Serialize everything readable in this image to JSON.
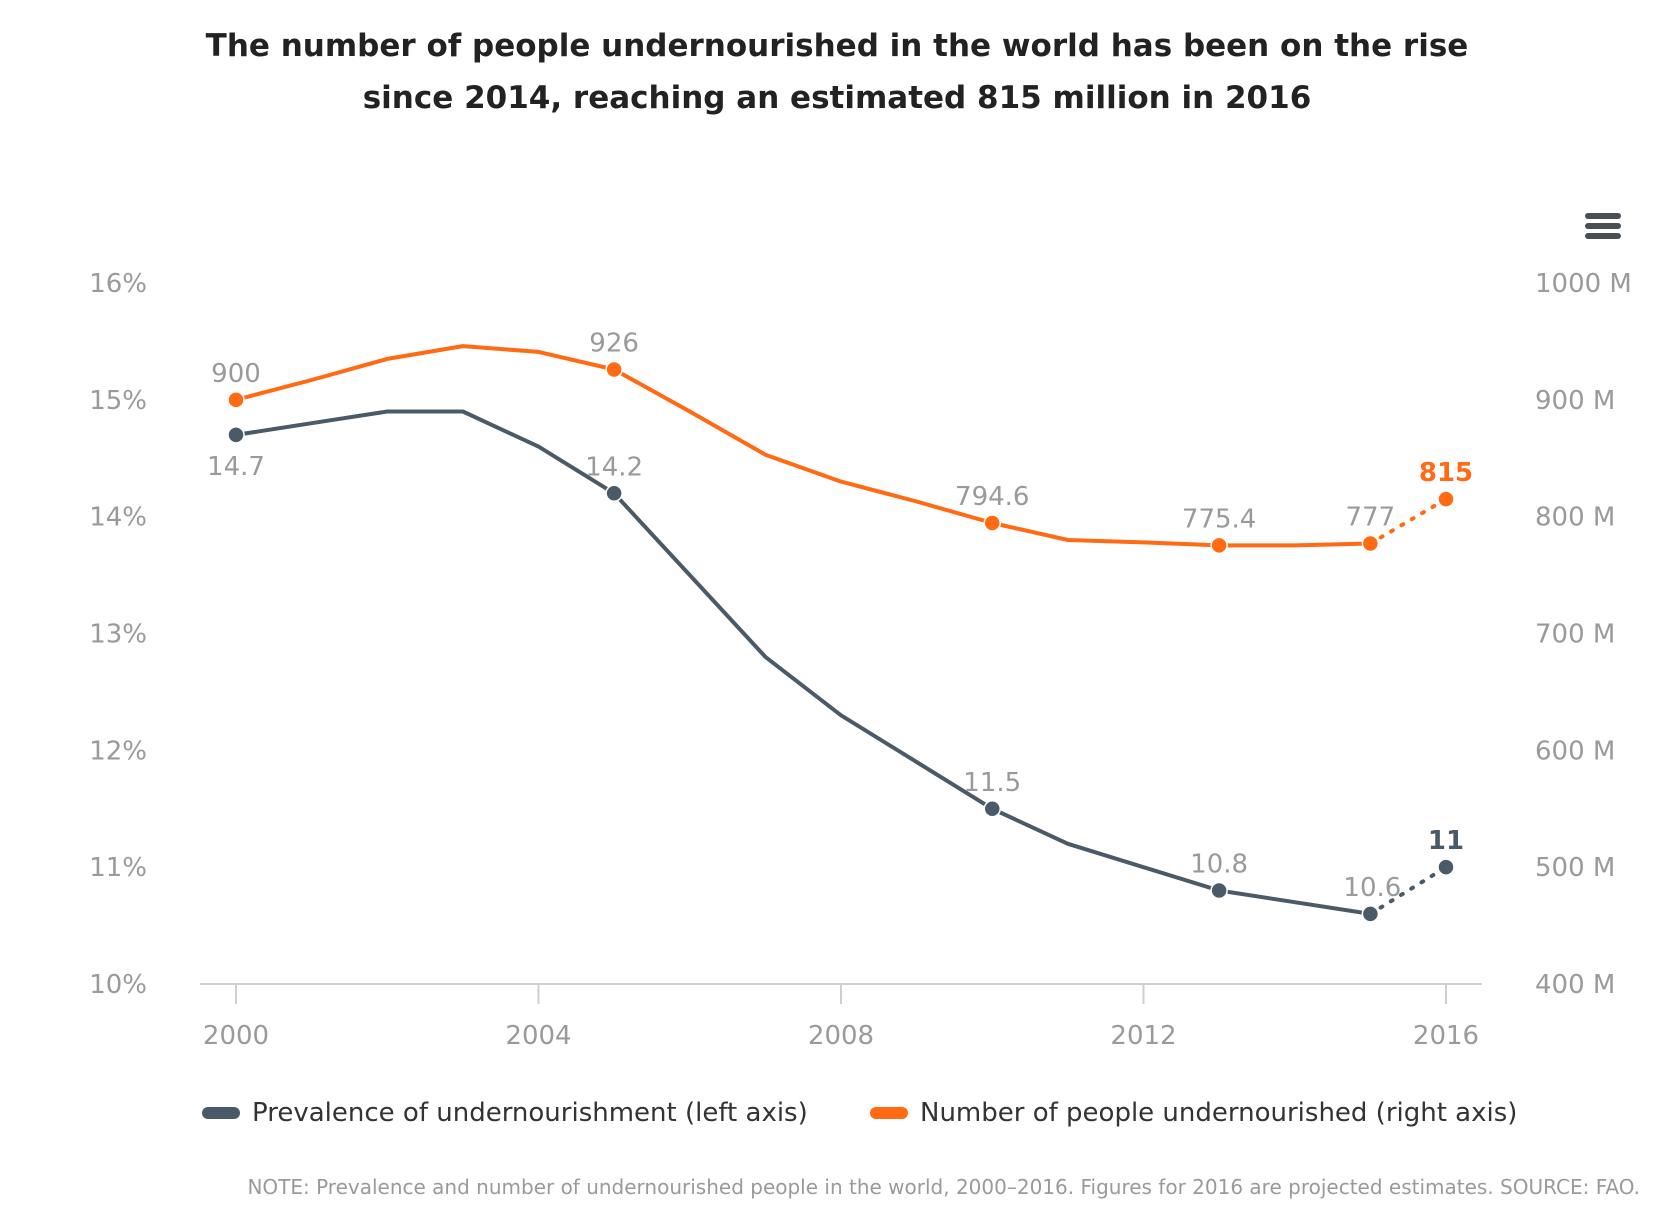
{
  "title": {
    "line1": "The number of people undernourished in the world has been on the rise",
    "line2": "since 2014, reaching an estimated 815 million in 2016"
  },
  "menu_icon": "hamburger-menu-icon",
  "legend": {
    "items": [
      {
        "label": "Prevalence of undernourishment (left axis)",
        "color": "#4b5a68"
      },
      {
        "label": "Number of people undernourished (right axis)",
        "color": "#ff6a13"
      }
    ]
  },
  "note": "NOTE: Prevalence and number of undernourished people in the world, 2000–2016. Figures for 2016 are projected estimates. SOURCE: FAO.",
  "chart_data": {
    "type": "line",
    "x_ticks": [
      "2000",
      "2004",
      "2008",
      "2012",
      "2016"
    ],
    "xlim": [
      2000,
      2016
    ],
    "y_left": {
      "ticks": [
        "10%",
        "11%",
        "12%",
        "13%",
        "14%",
        "15%",
        "16%"
      ],
      "lim": [
        10,
        16
      ]
    },
    "y_right": {
      "ticks": [
        "400 M",
        "500 M",
        "600 M",
        "700 M",
        "800 M",
        "900 M",
        "1000 M"
      ],
      "lim": [
        400,
        1000
      ]
    },
    "grid": false,
    "series": [
      {
        "name": "Prevalence of undernourishment (left axis)",
        "axis": "left",
        "color": "#4b5a68",
        "x": [
          2000,
          2001,
          2002,
          2003,
          2004,
          2005,
          2006,
          2007,
          2008,
          2009,
          2010,
          2011,
          2012,
          2013,
          2014,
          2015,
          2016
        ],
        "values": [
          14.7,
          14.8,
          14.9,
          14.9,
          14.6,
          14.2,
          13.5,
          12.8,
          12.3,
          11.9,
          11.5,
          11.2,
          11.0,
          10.8,
          10.7,
          10.6,
          11
        ],
        "markers": [
          2000,
          2005,
          2010,
          2013,
          2015,
          2016
        ],
        "labels": {
          "2000": "14.7",
          "2005": "14.2",
          "2010": "11.5",
          "2013": "10.8",
          "2015": "10.6",
          "2016": "11"
        },
        "projected_from": 2015
      },
      {
        "name": "Number of people undernourished (right axis)",
        "axis": "right",
        "color": "#ff6a13",
        "x": [
          2000,
          2001,
          2002,
          2003,
          2004,
          2005,
          2006,
          2007,
          2008,
          2009,
          2010,
          2011,
          2012,
          2013,
          2014,
          2015,
          2016
        ],
        "values": [
          900,
          917,
          935,
          946,
          941,
          926,
          890,
          853,
          830,
          813,
          794.6,
          780,
          778,
          775.4,
          775.4,
          777,
          815
        ],
        "markers": [
          2000,
          2005,
          2010,
          2013,
          2015,
          2016
        ],
        "labels": {
          "2000": "900",
          "2005": "926",
          "2010": "794.6",
          "2013": "775.4",
          "2015": "777",
          "2016": "815"
        },
        "projected_from": 2015
      }
    ]
  }
}
